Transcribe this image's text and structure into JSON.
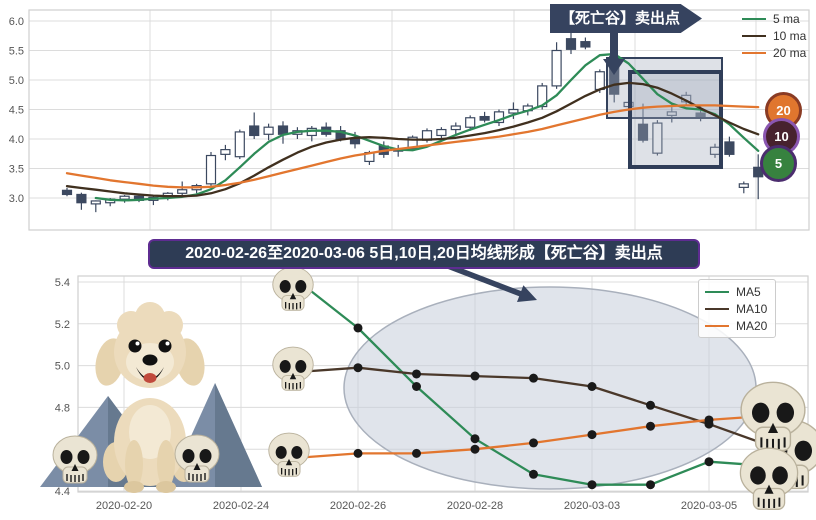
{
  "top_chart": {
    "annotation": "【死亡谷】卖出点",
    "legend": [
      {
        "label": "5 ma",
        "color": "#2e8b57"
      },
      {
        "label": "10 ma",
        "color": "#40301f"
      },
      {
        "label": "20 ma",
        "color": "#e2762f"
      }
    ],
    "badges": [
      {
        "label": "20",
        "bg": "#e0762e",
        "border": "#8a3b24"
      },
      {
        "label": "10",
        "bg": "#47222e",
        "border": "#8a56b0"
      },
      {
        "label": "5",
        "bg": "#37823f",
        "border": "#4b2d6e"
      }
    ]
  },
  "bottom_chart": {
    "title": "2020-02-26至2020-03-06 5日,10日,20日均线形成【死亡谷】卖出点",
    "legend": [
      {
        "label": "MA5",
        "color": "#2e8b57"
      },
      {
        "label": "MA10",
        "color": "#4a382a"
      },
      {
        "label": "MA20",
        "color": "#e2762f"
      }
    ]
  },
  "colors": {
    "navy": "#36435f",
    "candle_down": "#3c4960",
    "candle_up": "#ffffff",
    "candle_edge": "#3c4960",
    "grid": "#dcdcdc",
    "frame": "#cfcfcf",
    "tick_text": "#555555",
    "ellipse_fill": "#c7cedb",
    "ellipse_stroke": "#a9b0bc"
  },
  "chart_data": [
    {
      "id": "candlestick_panel",
      "type": "candlestick",
      "title": "",
      "annotation": "【死亡谷】卖出点",
      "ylim": [
        2.5,
        6.2
      ],
      "yticks": [
        3.0,
        3.5,
        4.0,
        4.5,
        5.0,
        5.5,
        6.0
      ],
      "grid": true,
      "legend_position": "upper right",
      "arrow_index": 38,
      "candles_ohlc": [
        [
          3.13,
          3.17,
          3.03,
          3.06
        ],
        [
          3.06,
          3.09,
          2.8,
          2.92
        ],
        [
          2.9,
          2.96,
          2.76,
          2.95
        ],
        [
          2.92,
          3.0,
          2.86,
          2.98
        ],
        [
          2.98,
          3.05,
          2.92,
          3.03
        ],
        [
          3.03,
          3.06,
          2.93,
          2.96
        ],
        [
          2.96,
          3.04,
          2.88,
          3.01
        ],
        [
          3.01,
          3.1,
          2.96,
          3.08
        ],
        [
          3.08,
          3.28,
          3.02,
          3.14
        ],
        [
          3.14,
          3.24,
          3.08,
          3.21
        ],
        [
          3.24,
          3.78,
          3.2,
          3.72
        ],
        [
          3.74,
          3.9,
          3.64,
          3.82
        ],
        [
          3.7,
          4.16,
          3.66,
          4.12
        ],
        [
          4.22,
          4.45,
          4.0,
          4.06
        ],
        [
          4.08,
          4.26,
          3.98,
          4.2
        ],
        [
          4.22,
          4.3,
          3.92,
          4.08
        ],
        [
          4.08,
          4.2,
          4.0,
          4.14
        ],
        [
          4.06,
          4.22,
          3.96,
          4.18
        ],
        [
          4.2,
          4.28,
          4.04,
          4.08
        ],
        [
          4.14,
          4.22,
          3.96,
          4.0
        ],
        [
          4.0,
          4.12,
          3.84,
          3.92
        ],
        [
          3.62,
          3.8,
          3.56,
          3.77
        ],
        [
          3.88,
          3.96,
          3.68,
          3.74
        ],
        [
          3.8,
          3.9,
          3.7,
          3.82
        ],
        [
          3.84,
          4.06,
          3.8,
          4.03
        ],
        [
          3.98,
          4.18,
          3.94,
          4.14
        ],
        [
          4.06,
          4.2,
          3.98,
          4.16
        ],
        [
          4.16,
          4.28,
          4.08,
          4.22
        ],
        [
          4.2,
          4.4,
          4.14,
          4.36
        ],
        [
          4.38,
          4.46,
          4.28,
          4.32
        ],
        [
          4.28,
          4.5,
          4.22,
          4.46
        ],
        [
          4.44,
          4.62,
          4.34,
          4.5
        ],
        [
          4.48,
          4.6,
          4.4,
          4.56
        ],
        [
          4.55,
          4.95,
          4.5,
          4.9
        ],
        [
          4.9,
          5.64,
          4.85,
          5.5
        ],
        [
          5.7,
          5.86,
          5.44,
          5.52
        ],
        [
          5.65,
          5.72,
          5.52,
          5.56
        ],
        [
          4.84,
          5.18,
          4.78,
          5.14
        ],
        [
          5.4,
          5.46,
          4.62,
          4.76
        ],
        [
          4.55,
          4.68,
          4.5,
          4.62
        ],
        [
          4.25,
          4.6,
          3.94,
          3.98
        ],
        [
          3.76,
          4.32,
          3.72,
          4.27
        ],
        [
          4.4,
          4.62,
          4.28,
          4.46
        ],
        [
          4.63,
          4.8,
          4.56,
          4.74
        ],
        [
          4.44,
          4.56,
          4.3,
          4.38
        ],
        [
          3.74,
          3.92,
          3.68,
          3.86
        ],
        [
          3.95,
          4.04,
          3.7,
          3.74
        ],
        [
          3.18,
          3.28,
          3.08,
          3.24
        ],
        [
          3.52,
          3.74,
          2.98,
          3.36
        ]
      ],
      "series": [
        {
          "name": "5 ma",
          "color": "#2e8b57",
          "badge": "5",
          "values": [
            null,
            null,
            3.0,
            2.97,
            2.96,
            2.97,
            2.99,
            3.0,
            3.02,
            3.06,
            3.15,
            3.3,
            3.52,
            3.75,
            3.95,
            4.07,
            4.12,
            4.14,
            4.14,
            4.12,
            4.06,
            3.97,
            3.88,
            3.82,
            3.81,
            3.87,
            3.97,
            4.07,
            4.16,
            4.24,
            4.32,
            4.41,
            4.48,
            4.57,
            4.74,
            5.0,
            5.25,
            5.42,
            5.44,
            5.28,
            5.02,
            4.76,
            4.6,
            4.52,
            4.5,
            4.42,
            4.25,
            4.02,
            3.8
          ]
        },
        {
          "name": "10 ma",
          "color": "#40301f",
          "badge": "10",
          "values": [
            3.2,
            3.17,
            3.14,
            3.11,
            3.08,
            3.06,
            3.04,
            3.03,
            3.03,
            3.04,
            3.08,
            3.15,
            3.25,
            3.38,
            3.52,
            3.65,
            3.77,
            3.87,
            3.94,
            3.99,
            4.02,
            4.03,
            4.02,
            4.0,
            3.99,
            3.99,
            4.0,
            4.02,
            4.06,
            4.1,
            4.15,
            4.21,
            4.28,
            4.36,
            4.47,
            4.6,
            4.73,
            4.84,
            4.92,
            4.95,
            4.93,
            4.87,
            4.77,
            4.65,
            4.52,
            4.4,
            4.28,
            4.17,
            4.08
          ]
        },
        {
          "name": "20 ma",
          "color": "#e2762f",
          "badge": "20",
          "values": [
            3.42,
            3.38,
            3.34,
            3.3,
            3.27,
            3.24,
            3.21,
            3.19,
            3.18,
            3.18,
            3.19,
            3.22,
            3.26,
            3.31,
            3.37,
            3.43,
            3.49,
            3.55,
            3.61,
            3.67,
            3.72,
            3.76,
            3.8,
            3.83,
            3.86,
            3.89,
            3.92,
            3.95,
            3.98,
            4.01,
            4.04,
            4.08,
            4.12,
            4.17,
            4.23,
            4.29,
            4.35,
            4.41,
            4.46,
            4.5,
            4.53,
            4.55,
            4.56,
            4.57,
            4.57,
            4.57,
            4.56,
            4.55,
            4.54
          ]
        }
      ]
    },
    {
      "id": "ma_zoom_panel",
      "type": "line",
      "title": "2020-02-26至2020-03-06 5日,10日,20日均线形成【死亡谷】卖出点",
      "ylim": [
        4.39,
        5.43
      ],
      "yticks": [
        4.4,
        4.6,
        4.8,
        5.0,
        5.2,
        5.4
      ],
      "grid": true,
      "legend_position": "upper right",
      "x_dates": [
        "2020-02-20",
        "2020-02-21",
        "2020-02-24",
        "2020-02-25",
        "2020-02-26",
        "2020-02-27",
        "2020-02-28",
        "2020-03-02",
        "2020-03-03",
        "2020-03-04",
        "2020-03-05",
        "2020-03-06"
      ],
      "x_tick_indices": [
        0,
        2,
        4,
        6,
        8,
        10
      ],
      "x_ticklabels": [
        "2020-02-20",
        "2020-02-24",
        "2020-02-26",
        "2020-02-28",
        "2020-03-03",
        "2020-03-05"
      ],
      "marker": "o",
      "series": [
        {
          "name": "MA5",
          "color": "#2e8b57",
          "start_index": 3,
          "values": [
            5.4,
            5.18,
            4.9,
            4.65,
            4.48,
            4.43,
            4.43,
            4.54,
            4.52
          ]
        },
        {
          "name": "MA10",
          "color": "#4a382a",
          "start_index": 3,
          "values": [
            4.97,
            4.99,
            4.96,
            4.95,
            4.94,
            4.9,
            4.81,
            4.72,
            4.62
          ]
        },
        {
          "name": "MA20",
          "color": "#e2762f",
          "start_index": 3,
          "values": [
            4.56,
            4.58,
            4.58,
            4.6,
            4.63,
            4.67,
            4.71,
            4.74,
            4.76
          ]
        }
      ]
    }
  ]
}
